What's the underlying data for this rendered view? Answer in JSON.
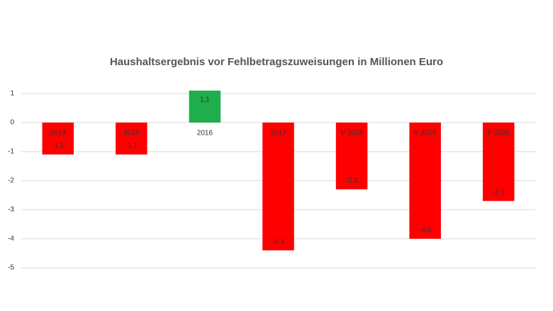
{
  "chart_data": {
    "type": "bar",
    "title": "Haushaltsergebnis vor Fehlbetragszuweisungen in Millionen Euro",
    "categories": [
      "2014",
      "2015",
      "2016",
      "2017",
      "V 2018",
      "V 2019",
      "P 2020"
    ],
    "values": [
      -1.1,
      -1.1,
      1.1,
      -4.4,
      -2.3,
      -4.0,
      -2.7
    ],
    "value_labels": [
      "-1,1",
      "-1,1",
      "1,1",
      "-4,4",
      "-2,3",
      "-4,0",
      "-2,7"
    ],
    "colors": [
      "#ff0000",
      "#ff0000",
      "#1fae4b",
      "#ff0000",
      "#ff0000",
      "#ff0000",
      "#ff0000"
    ],
    "ylim": [
      -5,
      1
    ],
    "yticks": [
      -5,
      -4,
      -3,
      -2,
      -1,
      0,
      1
    ],
    "grid": true
  }
}
